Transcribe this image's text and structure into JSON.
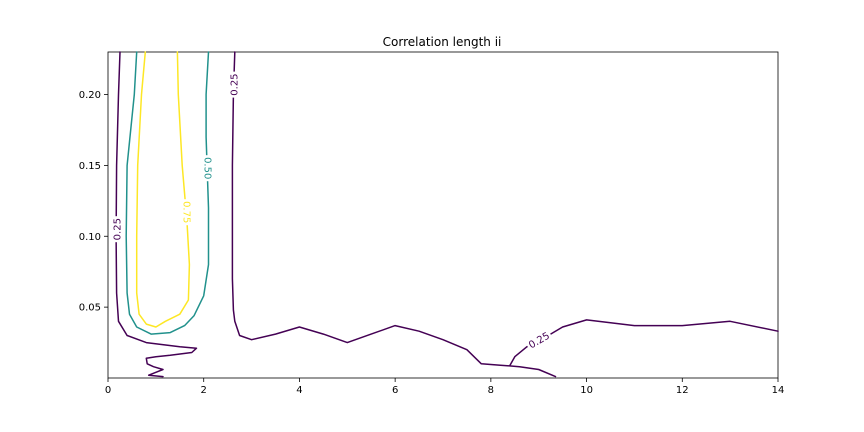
{
  "chart_data": {
    "type": "contour",
    "title": "Correlation length ii",
    "xlabel": "",
    "ylabel": "",
    "xlim": [
      0,
      14
    ],
    "ylim": [
      0.0,
      0.23
    ],
    "x_ticks": [
      0,
      2,
      4,
      6,
      8,
      10,
      12,
      14
    ],
    "x_tick_labels": [
      "0",
      "2",
      "4",
      "6",
      "8",
      "10",
      "12",
      "14"
    ],
    "y_ticks": [
      0.05,
      0.1,
      0.15,
      0.2
    ],
    "y_tick_labels": [
      "0.05",
      "0.10",
      "0.15",
      "0.20"
    ],
    "grid": false,
    "levels": [
      {
        "level": 0.25,
        "label": "0.25",
        "color": "#440154",
        "lines": [
          [
            [
              0.25,
              0.23
            ],
            [
              0.22,
              0.2
            ],
            [
              0.18,
              0.15
            ],
            [
              0.17,
              0.1
            ],
            [
              0.18,
              0.06
            ],
            [
              0.22,
              0.04
            ],
            [
              0.4,
              0.03
            ],
            [
              0.8,
              0.025
            ],
            [
              1.5,
              0.022
            ],
            [
              1.85,
              0.021
            ],
            [
              1.75,
              0.018
            ],
            [
              1.3,
              0.016
            ],
            [
              1.0,
              0.015
            ],
            [
              0.8,
              0.014
            ],
            [
              0.82,
              0.01
            ],
            [
              0.95,
              0.008
            ],
            [
              1.15,
              0.006
            ],
            [
              1.0,
              0.004
            ],
            [
              0.85,
              0.002
            ],
            [
              1.15,
              0.001
            ]
          ],
          [
            [
              2.65,
              0.23
            ],
            [
              2.62,
              0.2
            ],
            [
              2.6,
              0.15
            ],
            [
              2.6,
              0.1
            ],
            [
              2.6,
              0.07
            ],
            [
              2.62,
              0.048
            ],
            [
              2.65,
              0.04
            ],
            [
              2.75,
              0.03
            ],
            [
              3.0,
              0.027
            ],
            [
              3.5,
              0.031
            ],
            [
              4.0,
              0.036
            ],
            [
              4.5,
              0.031
            ],
            [
              5.0,
              0.025
            ],
            [
              5.5,
              0.031
            ],
            [
              6.0,
              0.037
            ],
            [
              6.5,
              0.033
            ],
            [
              7.0,
              0.027
            ],
            [
              7.5,
              0.02
            ],
            [
              7.8,
              0.01
            ],
            [
              8.2,
              0.009
            ],
            [
              8.6,
              0.008
            ],
            [
              9.0,
              0.006
            ],
            [
              9.35,
              0.001
            ]
          ],
          [
            [
              8.4,
              0.009
            ],
            [
              8.5,
              0.015
            ],
            [
              8.75,
              0.022
            ],
            [
              9.2,
              0.03
            ],
            [
              9.5,
              0.036
            ],
            [
              10.0,
              0.041
            ],
            [
              11.0,
              0.037
            ],
            [
              12.0,
              0.037
            ],
            [
              13.0,
              0.04
            ],
            [
              14.0,
              0.033
            ]
          ]
        ]
      },
      {
        "level": 0.5,
        "label": "0.50",
        "color": "#21918c",
        "lines": [
          [
            [
              0.6,
              0.23
            ],
            [
              0.55,
              0.2
            ],
            [
              0.4,
              0.15
            ],
            [
              0.38,
              0.1
            ],
            [
              0.4,
              0.06
            ],
            [
              0.45,
              0.045
            ],
            [
              0.6,
              0.036
            ],
            [
              0.9,
              0.031
            ],
            [
              1.3,
              0.032
            ],
            [
              1.6,
              0.037
            ],
            [
              1.8,
              0.044
            ],
            [
              2.0,
              0.058
            ],
            [
              2.1,
              0.08
            ],
            [
              2.1,
              0.12
            ],
            [
              2.05,
              0.17
            ],
            [
              2.05,
              0.2
            ],
            [
              2.1,
              0.23
            ]
          ]
        ]
      },
      {
        "level": 0.75,
        "label": "0.75",
        "color": "#fde725",
        "lines": [
          [
            [
              0.78,
              0.23
            ],
            [
              0.7,
              0.2
            ],
            [
              0.62,
              0.15
            ],
            [
              0.6,
              0.1
            ],
            [
              0.6,
              0.06
            ],
            [
              0.65,
              0.045
            ],
            [
              0.8,
              0.038
            ],
            [
              1.0,
              0.036
            ],
            [
              1.2,
              0.04
            ],
            [
              1.5,
              0.045
            ],
            [
              1.68,
              0.055
            ],
            [
              1.7,
              0.08
            ],
            [
              1.65,
              0.11
            ],
            [
              1.55,
              0.15
            ],
            [
              1.47,
              0.2
            ],
            [
              1.45,
              0.23
            ]
          ]
        ]
      }
    ],
    "contour_labels": [
      {
        "text": "0.25",
        "x": 0.18,
        "y": 0.105,
        "angle": -90,
        "color": "#440154"
      },
      {
        "text": "0.25",
        "x": 2.62,
        "y": 0.207,
        "angle": -90,
        "color": "#440154"
      },
      {
        "text": "0.25",
        "x": 9.0,
        "y": 0.027,
        "angle": -30,
        "color": "#440154"
      },
      {
        "text": "0.50",
        "x": 2.1,
        "y": 0.148,
        "angle": 90,
        "color": "#21918c"
      },
      {
        "text": "0.75",
        "x": 1.66,
        "y": 0.117,
        "angle": 90,
        "color": "#fde725"
      }
    ]
  }
}
